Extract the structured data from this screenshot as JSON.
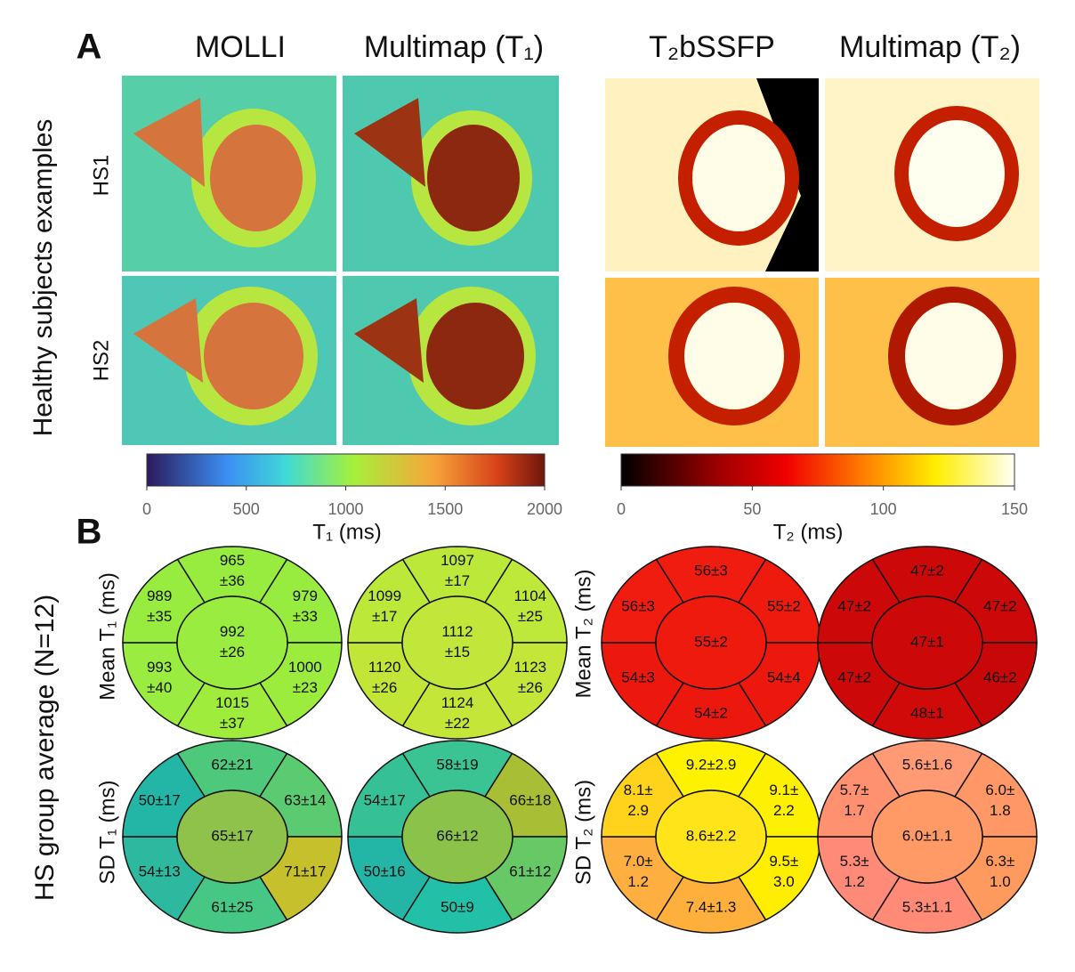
{
  "panel_a": {
    "letter": "A",
    "column_titles": [
      "MOLLI",
      "Multimap (T₁)",
      "T₂bSSFP",
      "Multimap (T₂)"
    ],
    "side_label": "Healthy subjects examples",
    "row_labels": [
      "HS1",
      "HS2"
    ],
    "colorbars": [
      {
        "range": [
          0,
          2000
        ],
        "ticks": [
          0,
          500,
          1000,
          1500,
          2000
        ],
        "label": "T₁ (ms)"
      },
      {
        "range": [
          0,
          150
        ],
        "ticks": [
          0,
          50,
          100,
          150
        ],
        "label": "T₂ (ms)"
      }
    ]
  },
  "panel_b": {
    "letter": "B",
    "side_label": "HS group average (N=12)",
    "row_labels": [
      "Mean T₁ (ms)",
      "SD T₁ (ms)",
      "Mean T₂ (ms)",
      "SD T₂ (ms)"
    ],
    "bullseyes": [
      {
        "segments": [
          {
            "text": [
              "965",
              "±36"
            ],
            "color": "#98ec40"
          },
          {
            "text": [
              "979",
              "±33"
            ],
            "color": "#98ec40"
          },
          {
            "text": [
              "1000",
              "±23"
            ],
            "color": "#9cec3e"
          },
          {
            "text": [
              "1015",
              "±37"
            ],
            "color": "#a0ec3c"
          },
          {
            "text": [
              "993",
              "±40"
            ],
            "color": "#9aec40"
          },
          {
            "text": [
              "989",
              "±35"
            ],
            "color": "#98ec40"
          },
          {
            "text": [
              "992",
              "±26"
            ],
            "color": "#9aec40"
          }
        ]
      },
      {
        "segments": [
          {
            "text": [
              "1097",
              "±17"
            ],
            "color": "#bce83a"
          },
          {
            "text": [
              "1104",
              "±25"
            ],
            "color": "#bee83a"
          },
          {
            "text": [
              "1123",
              "±26"
            ],
            "color": "#c4e638"
          },
          {
            "text": [
              "1124",
              "±22"
            ],
            "color": "#c4e638"
          },
          {
            "text": [
              "1120",
              "±26"
            ],
            "color": "#c2e638"
          },
          {
            "text": [
              "1099",
              "±17"
            ],
            "color": "#bce83a"
          },
          {
            "text": [
              "1112",
              "±15"
            ],
            "color": "#c0e73a"
          }
        ]
      },
      {
        "segments": [
          {
            "text": [
              "56±3"
            ],
            "color": "#f01c10"
          },
          {
            "text": [
              "55±2"
            ],
            "color": "#ee1a0e"
          },
          {
            "text": [
              "54±4"
            ],
            "color": "#ec180e"
          },
          {
            "text": [
              "54±2"
            ],
            "color": "#ec180e"
          },
          {
            "text": [
              "54±3"
            ],
            "color": "#ec180e"
          },
          {
            "text": [
              "56±3"
            ],
            "color": "#f01c10"
          },
          {
            "text": [
              "55±2"
            ],
            "color": "#ee1a0e"
          }
        ]
      },
      {
        "segments": [
          {
            "text": [
              "47±2"
            ],
            "color": "#cc0808"
          },
          {
            "text": [
              "47±2"
            ],
            "color": "#cc0808"
          },
          {
            "text": [
              "46±2"
            ],
            "color": "#c80808"
          },
          {
            "text": [
              "48±1"
            ],
            "color": "#d00a08"
          },
          {
            "text": [
              "47±2"
            ],
            "color": "#cc0808"
          },
          {
            "text": [
              "47±2"
            ],
            "color": "#cc0808"
          },
          {
            "text": [
              "47±1"
            ],
            "color": "#cc0808"
          }
        ]
      },
      {
        "segments": [
          {
            "text": [
              "62±21"
            ],
            "color": "#4ec97b"
          },
          {
            "text": [
              "63±14"
            ],
            "color": "#5acb70"
          },
          {
            "text": [
              "71±17"
            ],
            "color": "#c6c02c"
          },
          {
            "text": [
              "61±25"
            ],
            "color": "#46c884"
          },
          {
            "text": [
              "54±13"
            ],
            "color": "#2db9a0"
          },
          {
            "text": [
              "50±17"
            ],
            "color": "#23b6a6"
          },
          {
            "text": [
              "65±17"
            ],
            "color": "#8ec24a"
          }
        ]
      },
      {
        "segments": [
          {
            "text": [
              "58±19"
            ],
            "color": "#3ac393"
          },
          {
            "text": [
              "66±18"
            ],
            "color": "#a8bf35"
          },
          {
            "text": [
              "61±12"
            ],
            "color": "#66c966"
          },
          {
            "text": [
              "50±9"
            ],
            "color": "#23c0a8"
          },
          {
            "text": [
              "50±16"
            ],
            "color": "#23b6a6"
          },
          {
            "text": [
              "54±17"
            ],
            "color": "#36c096"
          },
          {
            "text": [
              "66±12"
            ],
            "color": "#8bc34a"
          }
        ]
      },
      {
        "segments": [
          {
            "text": [
              "9.2±2.9"
            ],
            "color": "#fff200"
          },
          {
            "text": [
              "9.1±",
              "2.2"
            ],
            "color": "#fdf000"
          },
          {
            "text": [
              "9.5±",
              "3.0"
            ],
            "color": "#ffee00"
          },
          {
            "text": [
              "7.4±1.3"
            ],
            "color": "#ffb03c"
          },
          {
            "text": [
              "7.0±",
              "1.2"
            ],
            "color": "#ffae40"
          },
          {
            "text": [
              "8.1±",
              "2.9"
            ],
            "color": "#ffd21c"
          },
          {
            "text": [
              "8.6±2.2"
            ],
            "color": "#ffe41a"
          }
        ]
      },
      {
        "segments": [
          {
            "text": [
              "5.6±1.6"
            ],
            "color": "#ff9a75"
          },
          {
            "text": [
              "6.0±",
              "1.8"
            ],
            "color": "#ff9866"
          },
          {
            "text": [
              "6.3±",
              "1.0"
            ],
            "color": "#ff9a5e"
          },
          {
            "text": [
              "5.3±1.1"
            ],
            "color": "#ff8a76"
          },
          {
            "text": [
              "5.3±",
              "1.2"
            ],
            "color": "#ff8a78"
          },
          {
            "text": [
              "5.7±",
              "1.7"
            ],
            "color": "#ff9070"
          },
          {
            "text": [
              "6.0±1.1"
            ],
            "color": "#ff9966"
          }
        ]
      }
    ]
  }
}
